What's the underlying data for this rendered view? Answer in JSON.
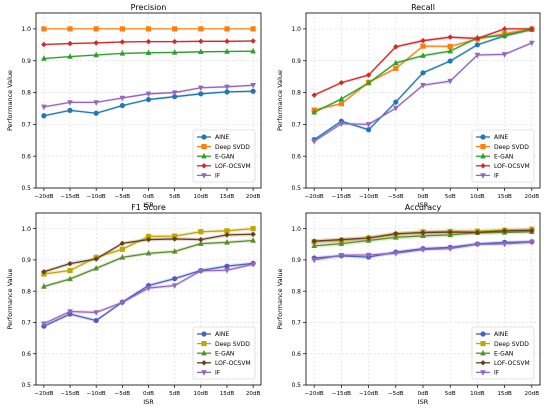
{
  "chart_data": [
    {
      "type": "line",
      "title": "Precision",
      "xlabel": "ISR",
      "ylabel": "Performance Value",
      "categories": [
        "−20dB",
        "−15dB",
        "−10dB",
        "−5dB",
        "0dB",
        "5dB",
        "10dB",
        "15dB",
        "20dB"
      ],
      "ylim": [
        0.5,
        1.05
      ],
      "yticks": [
        "0.5",
        "0.6",
        "0.7",
        "0.8",
        "0.9",
        "1.0"
      ],
      "ytick_values": [
        0.5,
        0.6,
        0.7,
        0.8,
        0.9,
        1.0
      ],
      "grid": true,
      "legend_position": "lower-right",
      "series": [
        {
          "name": "AINE",
          "color": "#1f77b4",
          "marker": "o",
          "values": [
            0.727,
            0.744,
            0.735,
            0.759,
            0.778,
            0.787,
            0.796,
            0.802,
            0.804
          ],
          "band": 0.004
        },
        {
          "name": "Deep SVDD",
          "color": "#ff7f0e",
          "marker": "s",
          "values": [
            1.0,
            1.0,
            1.0,
            1.0,
            1.0,
            1.0,
            1.0,
            1.0,
            1.0
          ],
          "band": 0.002
        },
        {
          "name": "E-GAN",
          "color": "#2ca02c",
          "marker": "^",
          "values": [
            0.907,
            0.913,
            0.918,
            0.923,
            0.925,
            0.926,
            0.928,
            0.929,
            0.93
          ],
          "band": 0.003
        },
        {
          "name": "LOF-OCSVM",
          "color": "#d62728",
          "marker": "D",
          "values": [
            0.951,
            0.954,
            0.956,
            0.959,
            0.96,
            0.96,
            0.961,
            0.961,
            0.962
          ],
          "band": 0.003
        },
        {
          "name": "IF",
          "color": "#9467bd",
          "marker": "v",
          "values": [
            0.755,
            0.769,
            0.769,
            0.783,
            0.796,
            0.8,
            0.815,
            0.818,
            0.823
          ],
          "band": 0.004
        }
      ]
    },
    {
      "type": "line",
      "title": "Recall",
      "xlabel": "ISR",
      "ylabel": "Performance Value",
      "categories": [
        "−20dB",
        "−15dB",
        "−10dB",
        "−5dB",
        "0dB",
        "5dB",
        "10dB",
        "15dB",
        "20dB"
      ],
      "ylim": [
        0.5,
        1.05
      ],
      "yticks": [
        "0.5",
        "0.6",
        "0.7",
        "0.8",
        "0.9",
        "1.0"
      ],
      "ytick_values": [
        0.5,
        0.6,
        0.7,
        0.8,
        0.9,
        1.0
      ],
      "grid": true,
      "legend_position": "lower-right",
      "series": [
        {
          "name": "AINE",
          "color": "#1f77b4",
          "marker": "o",
          "values": [
            0.652,
            0.71,
            0.683,
            0.77,
            0.862,
            0.899,
            0.95,
            0.978,
            0.998
          ],
          "band": 0.005
        },
        {
          "name": "Deep SVDD",
          "color": "#ff7f0e",
          "marker": "s",
          "values": [
            0.745,
            0.765,
            0.832,
            0.876,
            0.946,
            0.945,
            0.968,
            0.985,
            1.0
          ],
          "band": 0.005
        },
        {
          "name": "E-GAN",
          "color": "#2ca02c",
          "marker": "^",
          "values": [
            0.738,
            0.78,
            0.83,
            0.893,
            0.916,
            0.93,
            0.972,
            0.98,
            0.998
          ],
          "band": 0.005
        },
        {
          "name": "LOF-OCSVM",
          "color": "#d62728",
          "marker": "D",
          "values": [
            0.792,
            0.831,
            0.855,
            0.944,
            0.963,
            0.974,
            0.97,
            1.0,
            1.0
          ],
          "band": 0.005
        },
        {
          "name": "IF",
          "color": "#9467bd",
          "marker": "v",
          "values": [
            0.647,
            0.702,
            0.7,
            0.751,
            0.823,
            0.836,
            0.918,
            0.92,
            0.956
          ],
          "band": 0.005
        }
      ]
    },
    {
      "type": "line",
      "title": "F1 Score",
      "xlabel": "ISR",
      "ylabel": "Performance Value",
      "categories": [
        "−20dB",
        "−15dB",
        "−10dB",
        "−5dB",
        "0dB",
        "5dB",
        "10dB",
        "15dB",
        "20dB"
      ],
      "ylim": [
        0.5,
        1.05
      ],
      "yticks": [
        "0.5",
        "0.6",
        "0.7",
        "0.8",
        "0.9",
        "1.0"
      ],
      "ytick_values": [
        0.5,
        0.6,
        0.7,
        0.8,
        0.9,
        1.0
      ],
      "grid": true,
      "legend_position": "lower-right",
      "series": [
        {
          "name": "AINE",
          "color": "#4c5ebf",
          "marker": "o",
          "values": [
            0.688,
            0.727,
            0.706,
            0.765,
            0.818,
            0.84,
            0.866,
            0.88,
            0.889
          ],
          "band": 0.006
        },
        {
          "name": "Deep SVDD",
          "color": "#bfa600",
          "marker": "s",
          "values": [
            0.855,
            0.866,
            0.908,
            0.934,
            0.975,
            0.976,
            0.99,
            0.993,
            1.0
          ],
          "band": 0.006
        },
        {
          "name": "E-GAN",
          "color": "#5b8c2a",
          "marker": "^",
          "values": [
            0.815,
            0.839,
            0.873,
            0.908,
            0.921,
            0.927,
            0.952,
            0.956,
            0.962
          ],
          "band": 0.006
        },
        {
          "name": "LOF-OCSVM",
          "color": "#6b3d1f",
          "marker": "D",
          "values": [
            0.862,
            0.888,
            0.903,
            0.953,
            0.965,
            0.967,
            0.965,
            0.98,
            0.982
          ],
          "band": 0.006
        },
        {
          "name": "IF",
          "color": "#9467bd",
          "marker": "v",
          "values": [
            0.696,
            0.735,
            0.732,
            0.764,
            0.81,
            0.818,
            0.865,
            0.867,
            0.886
          ],
          "band": 0.006
        }
      ]
    },
    {
      "type": "line",
      "title": "Accuracy",
      "xlabel": "ISR",
      "ylabel": "Performance Value",
      "categories": [
        "−20dB",
        "−15dB",
        "−10dB",
        "−5dB",
        "0dB",
        "5dB",
        "10dB",
        "15dB",
        "20dB"
      ],
      "ylim": [
        0.5,
        1.05
      ],
      "yticks": [
        "0.5",
        "0.6",
        "0.7",
        "0.8",
        "0.9",
        "1.0"
      ],
      "ytick_values": [
        0.5,
        0.6,
        0.7,
        0.8,
        0.9,
        1.0
      ],
      "grid": true,
      "legend_position": "lower-right",
      "series": [
        {
          "name": "AINE",
          "color": "#4c5ebf",
          "marker": "o",
          "values": [
            0.906,
            0.913,
            0.909,
            0.925,
            0.936,
            0.94,
            0.951,
            0.956,
            0.958
          ],
          "band": 0.006
        },
        {
          "name": "Deep SVDD",
          "color": "#bfa600",
          "marker": "s",
          "values": [
            0.958,
            0.962,
            0.97,
            0.981,
            0.99,
            0.991,
            0.992,
            0.995,
            0.998
          ],
          "band": 0.007
        },
        {
          "name": "E-GAN",
          "color": "#5b8c2a",
          "marker": "^",
          "values": [
            0.945,
            0.952,
            0.962,
            0.972,
            0.977,
            0.98,
            0.987,
            0.988,
            0.99
          ],
          "band": 0.007
        },
        {
          "name": "LOF-OCSVM",
          "color": "#6b3d1f",
          "marker": "D",
          "values": [
            0.96,
            0.965,
            0.97,
            0.984,
            0.987,
            0.989,
            0.988,
            0.993,
            0.994
          ],
          "band": 0.007
        },
        {
          "name": "IF",
          "color": "#9467bd",
          "marker": "v",
          "values": [
            0.9,
            0.915,
            0.916,
            0.921,
            0.933,
            0.936,
            0.95,
            0.951,
            0.957
          ],
          "band": 0.006
        }
      ]
    }
  ]
}
